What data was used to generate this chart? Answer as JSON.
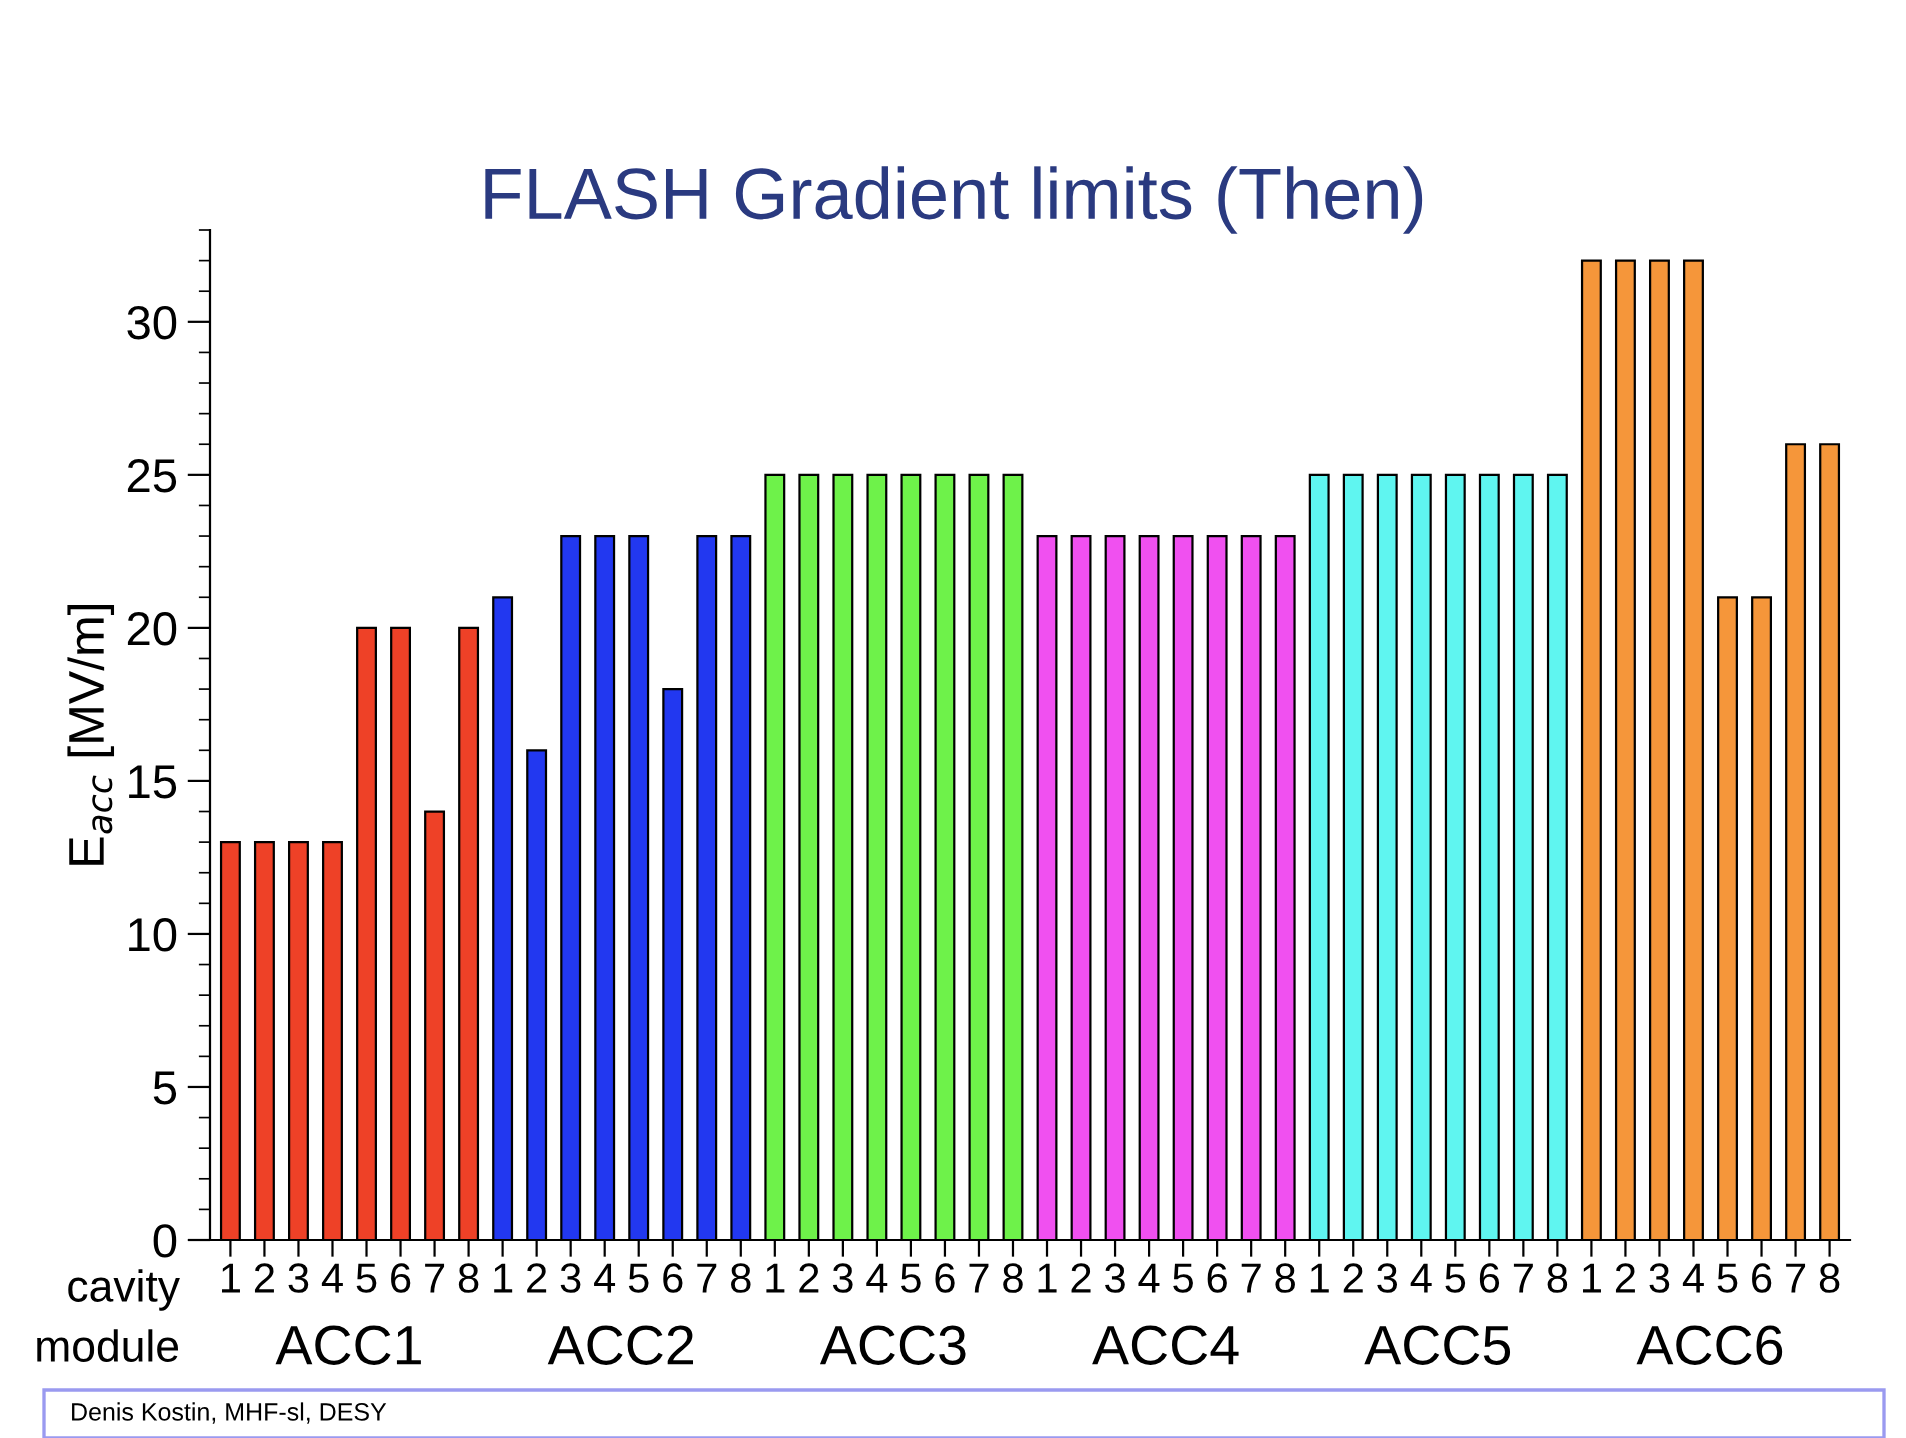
{
  "chart_data": {
    "type": "bar",
    "title": "FLASH Gradient limits (Then)",
    "ylabel": "E$_{acc}$ [MV/m]",
    "categories": [
      "1",
      "2",
      "3",
      "4",
      "5",
      "6",
      "7",
      "8",
      "1",
      "2",
      "3",
      "4",
      "5",
      "6",
      "7",
      "8",
      "1",
      "2",
      "3",
      "4",
      "5",
      "6",
      "7",
      "8",
      "1",
      "2",
      "3",
      "4",
      "5",
      "6",
      "7",
      "8",
      "1",
      "2",
      "3",
      "4",
      "5",
      "6",
      "7",
      "8",
      "1",
      "2",
      "3",
      "4",
      "5",
      "6",
      "7",
      "8"
    ],
    "values": [
      13,
      13,
      13,
      13,
      20,
      20,
      14,
      20,
      21,
      16,
      23,
      23,
      23,
      18,
      23,
      23,
      25,
      25,
      25,
      25,
      25,
      25,
      25,
      25,
      23,
      23,
      23,
      23,
      23,
      23,
      23,
      23,
      25,
      25,
      25,
      25,
      25,
      25,
      25,
      25,
      32,
      32,
      32,
      32,
      21,
      21,
      26,
      26
    ],
    "colors": [
      "#ee4127",
      "#ee4127",
      "#ee4127",
      "#ee4127",
      "#ee4127",
      "#ee4127",
      "#ee4127",
      "#ee4127",
      "#2238f0",
      "#2238f0",
      "#2238f0",
      "#2238f0",
      "#2238f0",
      "#2238f0",
      "#2238f0",
      "#2238f0",
      "#6ef24a",
      "#6ef24a",
      "#6ef24a",
      "#6ef24a",
      "#6ef24a",
      "#6ef24a",
      "#6ef24a",
      "#6ef24a",
      "#f050f0",
      "#f050f0",
      "#f050f0",
      "#f050f0",
      "#f050f0",
      "#f050f0",
      "#f050f0",
      "#f050f0",
      "#5ff5f0",
      "#5ff5f0",
      "#5ff5f0",
      "#5ff5f0",
      "#5ff5f0",
      "#5ff5f0",
      "#5ff5f0",
      "#5ff5f0",
      "#f5963a",
      "#f5963a",
      "#f5963a",
      "#f5963a",
      "#f5963a",
      "#f5963a",
      "#f5963a",
      "#f5963a"
    ],
    "ylim": [
      0,
      33
    ],
    "yticks": [
      0,
      5,
      10,
      15,
      20,
      25,
      30
    ],
    "grid": false,
    "legend": false,
    "annotations": [
      "cavity",
      "module",
      "ACC1",
      "ACC2",
      "ACC3",
      "ACC4",
      "ACC5",
      "ACC6",
      "Denis Kostin, MHF-sl, DESY"
    ]
  }
}
